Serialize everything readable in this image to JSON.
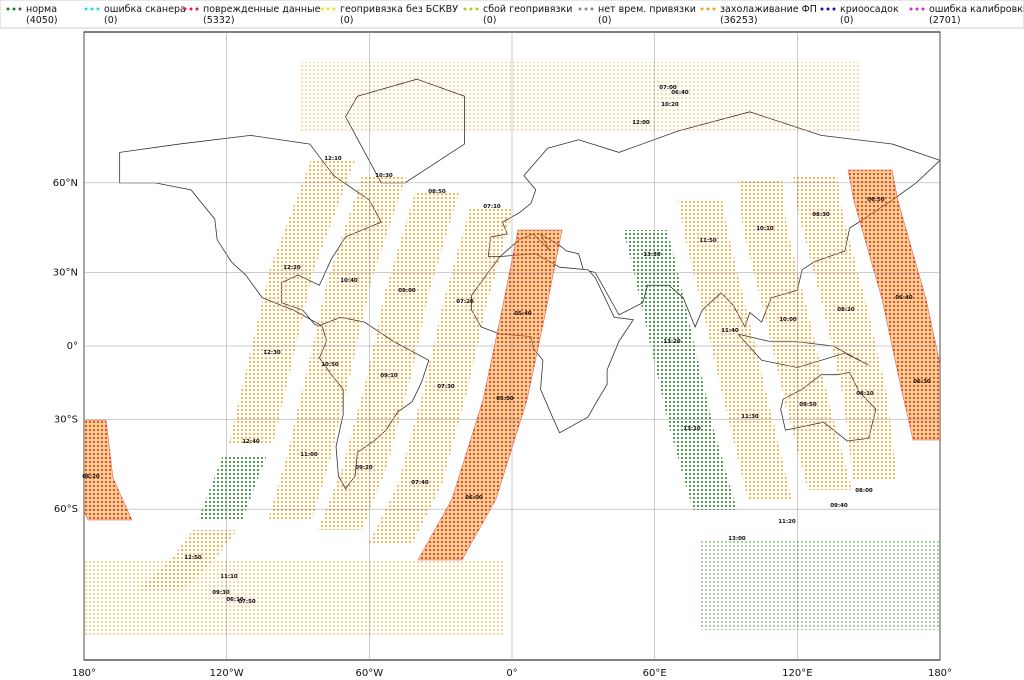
{
  "chart_data": {
    "type": "map",
    "projection": "miller",
    "xlim": [
      -180,
      180
    ],
    "ylim": [
      -90,
      90
    ],
    "grid": true,
    "xticks": [
      {
        "value": -180,
        "label": "180°"
      },
      {
        "value": -120,
        "label": "120°W"
      },
      {
        "value": -60,
        "label": "60°W"
      },
      {
        "value": 0,
        "label": "0°"
      },
      {
        "value": 60,
        "label": "60°E"
      },
      {
        "value": 120,
        "label": "120°E"
      },
      {
        "value": 180,
        "label": "180°"
      }
    ],
    "yticks": [
      {
        "value": 60,
        "label": "60°N"
      },
      {
        "value": 30,
        "label": "30°N"
      },
      {
        "value": 0,
        "label": "0°"
      },
      {
        "value": -30,
        "label": "30°S"
      },
      {
        "value": -60,
        "label": "60°S"
      }
    ],
    "legend": [
      {
        "name": "норма",
        "count": "(4050)",
        "color": "#1a7f1a"
      },
      {
        "name": "ошибка сканера",
        "count": "(0)",
        "color": "#22dddd"
      },
      {
        "name": "поврежденные данные",
        "count": "(5332)",
        "color": "#e02020"
      },
      {
        "name": "геопривязка без БСКВУ",
        "count": "(0)",
        "color": "#f0e020"
      },
      {
        "name": "сбой геопривязки",
        "count": "(0)",
        "color": "#b8c810"
      },
      {
        "name": "нет врем. привязки",
        "count": "(0)",
        "color": "#888888"
      },
      {
        "name": "захолаживание ФП",
        "count": "(36253)",
        "color": "#f5a020"
      },
      {
        "name": "криоосадок",
        "count": "(0)",
        "color": "#1010c0"
      },
      {
        "name": "ошибка калибровки",
        "count": "(2701)",
        "color": "#e020e0"
      }
    ],
    "time_labels": [
      "07:00",
      "06:40",
      "10:20",
      "12:00",
      "12:10",
      "10:30",
      "08:50",
      "07:10",
      "06:50",
      "08:30",
      "10:10",
      "11:50",
      "13:30",
      "12:20",
      "10:40",
      "09:00",
      "07:20",
      "06:40",
      "08:20",
      "10:00",
      "11:40",
      "05:40",
      "13:20",
      "12:30",
      "10:50",
      "09:10",
      "07:30",
      "06:30",
      "08:10",
      "09:50",
      "11:30",
      "05:50",
      "13:10",
      "12:40",
      "11:00",
      "09:20",
      "07:40",
      "06:00",
      "08:00",
      "09:40",
      "11:20",
      "13:00",
      "06:20",
      "12:50",
      "11:10",
      "09:30",
      "06:10",
      "07:50"
    ]
  }
}
